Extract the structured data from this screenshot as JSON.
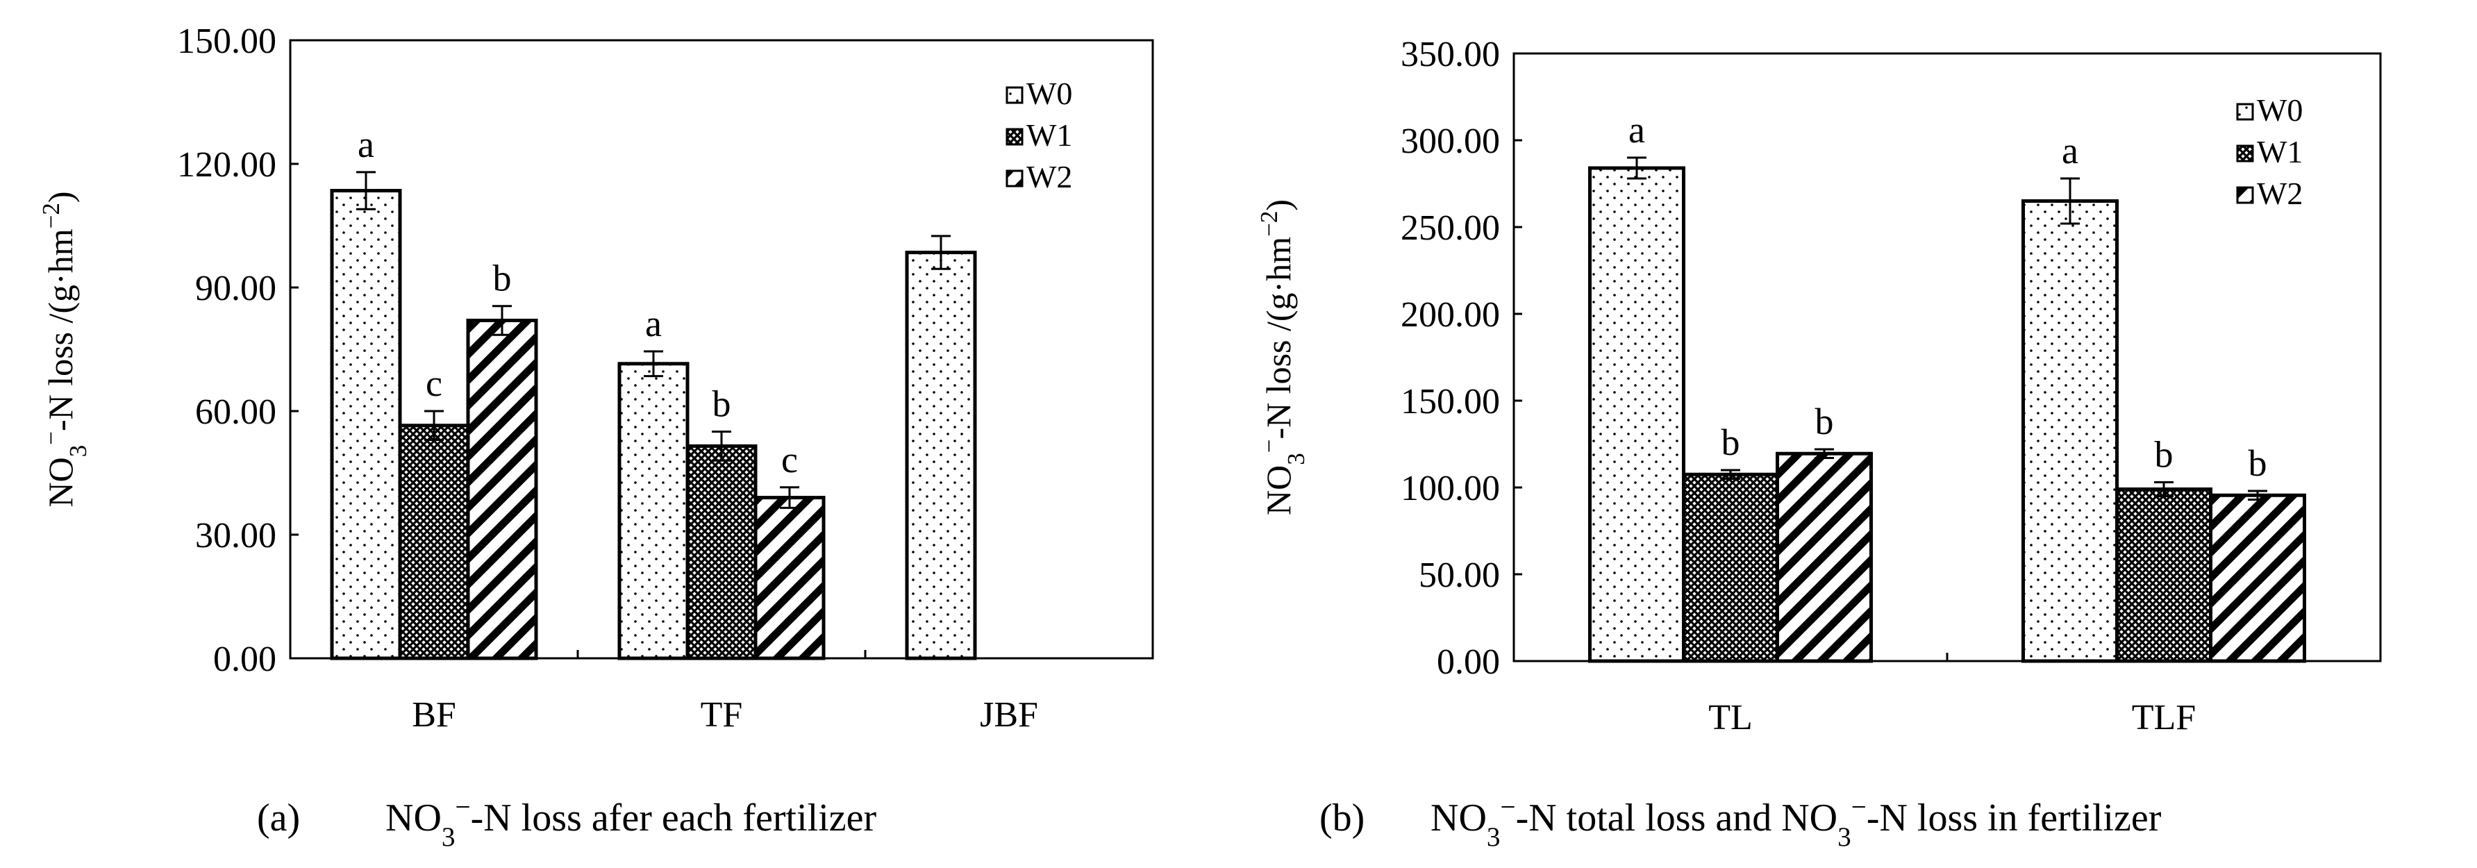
{
  "chart_data": [
    {
      "type": "bar",
      "panel_label": "(a)",
      "caption_parts": [
        "NO",
        "3",
        "−",
        "-N loss afer each fertilizer"
      ],
      "ylabel_parts": [
        "NO",
        "3",
        "−",
        "-N  loss /(g",
        "·",
        "hm",
        "−2",
        ")"
      ],
      "ylim": [
        0,
        150
      ],
      "yticks": [
        "0.00",
        "30.00",
        "60.00",
        "90.00",
        "120.00",
        "150.00"
      ],
      "categories": [
        "BF",
        "TF",
        "JBF"
      ],
      "legend_position": "top-right",
      "series": [
        {
          "name": "W0",
          "pattern": "dots",
          "values": [
            113.5,
            71.5,
            98.5
          ],
          "errors": [
            4.5,
            3.0,
            4.0
          ],
          "sig": [
            "a",
            "a",
            ""
          ]
        },
        {
          "name": "W1",
          "pattern": "cross",
          "values": [
            56.5,
            51.5,
            null
          ],
          "errors": [
            3.5,
            3.5,
            null
          ],
          "sig": [
            "c",
            "b",
            ""
          ]
        },
        {
          "name": "W2",
          "pattern": "hatch",
          "values": [
            82.0,
            39.0,
            null
          ],
          "errors": [
            3.5,
            2.5,
            null
          ],
          "sig": [
            "b",
            "c",
            ""
          ]
        }
      ]
    },
    {
      "type": "bar",
      "panel_label": "(b)",
      "caption_parts": [
        "NO",
        "3",
        "−",
        "-N total loss and NO",
        "3",
        "−",
        "-N loss in fertilizer"
      ],
      "ylabel_parts": [
        "NO",
        "3",
        "−",
        "-N  loss /(g",
        "·",
        "hm",
        "−2",
        ")"
      ],
      "ylim": [
        0,
        350
      ],
      "yticks": [
        "0.00",
        "50.00",
        "100.00",
        "150.00",
        "200.00",
        "250.00",
        "300.00",
        "350.00"
      ],
      "categories": [
        "TL",
        "TLF"
      ],
      "legend_position": "top-right",
      "series": [
        {
          "name": "W0",
          "pattern": "dots",
          "values": [
            284.0,
            265.0
          ],
          "errors": [
            6.0,
            13.0
          ],
          "sig": [
            "a",
            "a"
          ]
        },
        {
          "name": "W1",
          "pattern": "cross",
          "values": [
            107.5,
            99.0
          ],
          "errors": [
            2.5,
            4.0
          ],
          "sig": [
            "b",
            "b"
          ]
        },
        {
          "name": "W2",
          "pattern": "hatch",
          "values": [
            119.5,
            95.5
          ],
          "errors": [
            2.5,
            2.5
          ],
          "sig": [
            "b",
            "b"
          ]
        }
      ]
    }
  ]
}
